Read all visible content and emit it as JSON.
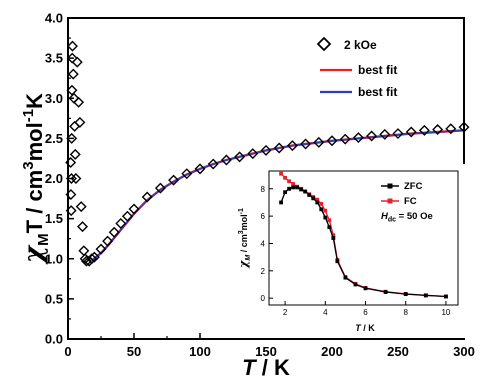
{
  "chart_data": [
    {
      "type": "scatter",
      "xlabel_italic": "T",
      "xlabel_rest": " / K",
      "ylabel_parts": {
        "chi": "χ",
        "sub": "M",
        "mid": "T / cm",
        "sup": "3",
        "rest": "mol",
        "sup2": "-1",
        "end": "K"
      },
      "xlim": [
        0,
        300
      ],
      "ylim": [
        0.0,
        4.0
      ],
      "xticks": [
        "0",
        "50",
        "100",
        "150",
        "200",
        "250",
        "300"
      ],
      "yticks": [
        "0.0",
        "0.5",
        "1.0",
        "1.5",
        "2.0",
        "2.5",
        "3.0",
        "3.5",
        "4.0"
      ],
      "legend_position": "top-right",
      "series": [
        {
          "name": "2 kOe",
          "marker": "diamond-open",
          "color": "#000000",
          "points": [
            [
              2.0,
              2.2
            ],
            [
              2.2,
              1.8
            ],
            [
              2.4,
              1.6
            ],
            [
              2.6,
              2.0
            ],
            [
              2.8,
              2.5
            ],
            [
              3.0,
              3.1
            ],
            [
              3.2,
              3.5
            ],
            [
              3.4,
              3.65
            ],
            [
              4.0,
              3.3
            ],
            [
              4.5,
              3.0
            ],
            [
              5.0,
              2.65
            ],
            [
              5.5,
              2.3
            ],
            [
              6.0,
              2.0
            ],
            [
              7.0,
              3.45
            ],
            [
              8.0,
              2.95
            ],
            [
              9.0,
              2.7
            ],
            [
              10.0,
              1.65
            ],
            [
              11.0,
              1.4
            ],
            [
              12.0,
              1.1
            ],
            [
              13.0,
              1.0
            ],
            [
              14.0,
              0.97
            ],
            [
              16.0,
              0.97
            ],
            [
              18.0,
              1.0
            ],
            [
              20,
              1.02
            ],
            [
              25,
              1.12
            ],
            [
              30,
              1.22
            ],
            [
              35,
              1.33
            ],
            [
              40,
              1.44
            ],
            [
              45,
              1.53
            ],
            [
              50,
              1.62
            ],
            [
              60,
              1.77
            ],
            [
              70,
              1.88
            ],
            [
              80,
              1.98
            ],
            [
              90,
              2.06
            ],
            [
              100,
              2.12
            ],
            [
              110,
              2.18
            ],
            [
              120,
              2.23
            ],
            [
              130,
              2.27
            ],
            [
              140,
              2.31
            ],
            [
              150,
              2.35
            ],
            [
              160,
              2.38
            ],
            [
              170,
              2.41
            ],
            [
              180,
              2.43
            ],
            [
              190,
              2.45
            ],
            [
              200,
              2.47
            ],
            [
              210,
              2.49
            ],
            [
              220,
              2.51
            ],
            [
              230,
              2.53
            ],
            [
              240,
              2.55
            ],
            [
              250,
              2.56
            ],
            [
              260,
              2.58
            ],
            [
              270,
              2.6
            ],
            [
              280,
              2.61
            ],
            [
              290,
              2.62
            ],
            [
              300,
              2.64
            ]
          ]
        },
        {
          "name": "best fit",
          "color": "#e8202a",
          "line": [
            [
              18,
              0.98
            ],
            [
              25,
              1.07
            ],
            [
              30,
              1.16
            ],
            [
              40,
              1.36
            ],
            [
              50,
              1.56
            ],
            [
              60,
              1.73
            ],
            [
              70,
              1.86
            ],
            [
              80,
              1.96
            ],
            [
              90,
              2.05
            ],
            [
              100,
              2.12
            ],
            [
              110,
              2.18
            ],
            [
              120,
              2.23
            ],
            [
              130,
              2.27
            ],
            [
              140,
              2.31
            ],
            [
              150,
              2.35
            ],
            [
              160,
              2.38
            ],
            [
              170,
              2.41
            ],
            [
              180,
              2.43
            ],
            [
              190,
              2.45
            ],
            [
              200,
              2.47
            ],
            [
              220,
              2.5
            ],
            [
              240,
              2.53
            ],
            [
              260,
              2.56
            ],
            [
              280,
              2.58
            ],
            [
              300,
              2.6
            ]
          ]
        },
        {
          "name": "best fit",
          "color": "#2a3fb8",
          "line": [
            [
              18,
              0.98
            ],
            [
              25,
              1.07
            ],
            [
              30,
              1.16
            ],
            [
              40,
              1.36
            ],
            [
              50,
              1.56
            ],
            [
              60,
              1.73
            ],
            [
              70,
              1.86
            ],
            [
              80,
              1.96
            ],
            [
              90,
              2.05
            ],
            [
              100,
              2.12
            ],
            [
              110,
              2.18
            ],
            [
              120,
              2.23
            ],
            [
              130,
              2.27
            ],
            [
              140,
              2.31
            ],
            [
              150,
              2.35
            ],
            [
              160,
              2.38
            ],
            [
              170,
              2.41
            ],
            [
              180,
              2.43
            ],
            [
              190,
              2.45
            ],
            [
              200,
              2.47
            ],
            [
              220,
              2.5
            ],
            [
              240,
              2.53
            ],
            [
              260,
              2.56
            ],
            [
              280,
              2.58
            ],
            [
              300,
              2.6
            ]
          ]
        }
      ]
    },
    {
      "type": "line",
      "xlabel_italic": "T",
      "xlabel_rest": " / K",
      "ylabel_parts": {
        "chi": "χ",
        "sub": "M",
        "rest": " / cm",
        "sup": "3",
        "end": "mol",
        "sup2": "-1"
      },
      "xlim": [
        1.2,
        10.6
      ],
      "ylim": [
        -0.5,
        9.3
      ],
      "xticks": [
        2,
        4,
        6,
        8,
        10
      ],
      "yticks": [
        0,
        2,
        4,
        6,
        8
      ],
      "annotation": {
        "h": "H",
        "sub": "dc",
        "rest": " = 50 Oe"
      },
      "series": [
        {
          "name": "ZFC",
          "color": "#000000",
          "marker": "square",
          "points": [
            [
              1.8,
              7.0
            ],
            [
              2.0,
              7.75
            ],
            [
              2.2,
              8.0
            ],
            [
              2.4,
              8.1
            ],
            [
              2.6,
              8.1
            ],
            [
              2.8,
              7.95
            ],
            [
              3.0,
              7.8
            ],
            [
              3.2,
              7.55
            ],
            [
              3.4,
              7.3
            ],
            [
              3.6,
              7.0
            ],
            [
              3.8,
              6.5
            ],
            [
              4.0,
              5.9
            ],
            [
              4.2,
              5.2
            ],
            [
              4.4,
              4.4
            ],
            [
              4.6,
              2.7
            ],
            [
              5.0,
              1.5
            ],
            [
              5.5,
              1.0
            ],
            [
              6.0,
              0.72
            ],
            [
              7.0,
              0.45
            ],
            [
              8.0,
              0.3
            ],
            [
              9.0,
              0.2
            ],
            [
              10.0,
              0.12
            ]
          ]
        },
        {
          "name": "FC",
          "color": "#e8202a",
          "marker": "square",
          "points": [
            [
              1.8,
              9.1
            ],
            [
              2.0,
              8.8
            ],
            [
              2.2,
              8.55
            ],
            [
              2.4,
              8.35
            ],
            [
              2.6,
              8.15
            ],
            [
              2.8,
              8.0
            ],
            [
              3.0,
              7.8
            ],
            [
              3.2,
              7.6
            ],
            [
              3.4,
              7.4
            ],
            [
              3.6,
              7.2
            ],
            [
              3.8,
              6.9
            ],
            [
              4.0,
              6.4
            ],
            [
              4.2,
              5.7
            ],
            [
              4.4,
              4.6
            ],
            [
              4.6,
              2.8
            ],
            [
              5.0,
              1.55
            ],
            [
              5.5,
              1.05
            ],
            [
              6.0,
              0.75
            ],
            [
              7.0,
              0.47
            ],
            [
              8.0,
              0.31
            ],
            [
              9.0,
              0.21
            ],
            [
              10.0,
              0.13
            ]
          ]
        }
      ]
    }
  ]
}
